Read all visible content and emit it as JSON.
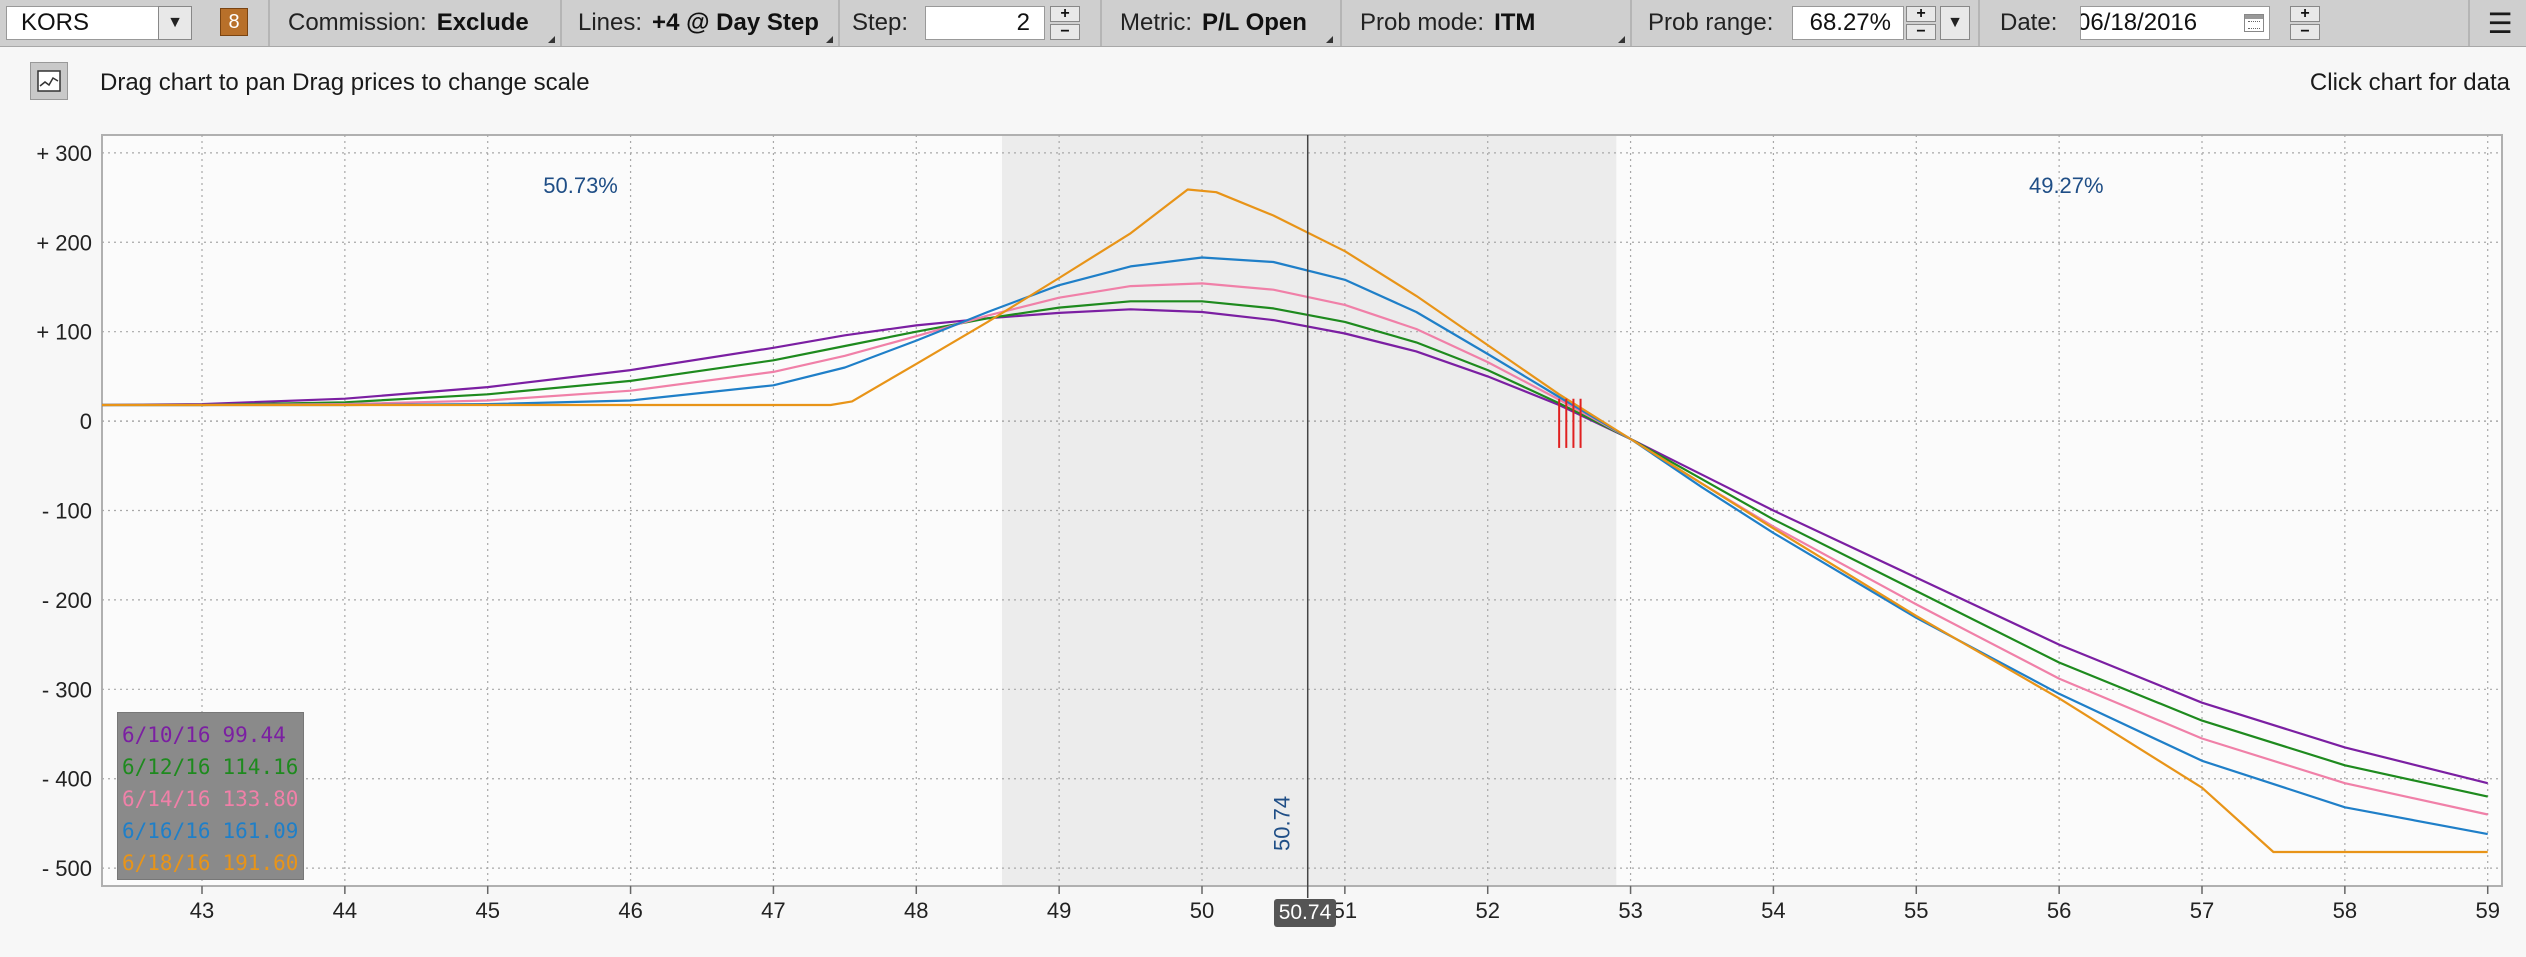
{
  "toolbar": {
    "symbol": "KORS",
    "symbol_badge": "8",
    "commission_label": "Commission:",
    "commission_value": "Exclude",
    "lines_label": "Lines:",
    "lines_value": "+4 @ Day Step",
    "step_label": "Step:",
    "step_value": "2",
    "metric_label": "Metric:",
    "metric_value": "P/L Open",
    "prob_mode_label": "Prob mode:",
    "prob_mode_value": "ITM",
    "prob_range_label": "Prob range:",
    "prob_range_value": "68.27%",
    "date_label": "Date:",
    "date_value": "06/18/2016",
    "spin_plus": "+",
    "spin_minus": "−",
    "dropdown_arrow": "▼",
    "menu_icon": "☰"
  },
  "info": {
    "left_text": "Drag chart to pan Drag prices to change scale",
    "right_text": "Click chart for data"
  },
  "chart_data": {
    "type": "line",
    "x_ticks": [
      43,
      44,
      45,
      46,
      47,
      48,
      49,
      50,
      51,
      52,
      53,
      54,
      55,
      56,
      57,
      58,
      59
    ],
    "y_ticks": [
      300,
      200,
      100,
      0,
      -100,
      -200,
      -300,
      -400,
      -500
    ],
    "y_tick_labels": [
      "+ 300",
      "+ 200",
      "+ 100",
      "0",
      "- 100",
      "- 200",
      "- 300",
      "- 400",
      "- 500"
    ],
    "xlim": [
      42.3,
      59.1
    ],
    "ylim": [
      -520,
      320
    ],
    "grid": true,
    "shaded_range": [
      48.6,
      52.9
    ],
    "probability_left": "50.73%",
    "probability_right": "49.27%",
    "current_price": 50.74,
    "current_price_label": "50.74",
    "current_price_marker": "50.74",
    "breakeven_markers": [
      52.5,
      52.55,
      52.6,
      52.65
    ],
    "colors": {
      "background": "#fbfbfb",
      "shade": "#ececec",
      "grid": "#a8a8a8",
      "probability_text": "#1f4e86",
      "breakeven": "#e02020"
    },
    "series": [
      {
        "name": "6/10/16",
        "value": "99.44",
        "color": "#7b1fa2",
        "x": [
          42.3,
          43.0,
          44.0,
          45.0,
          46.0,
          47.0,
          47.5,
          48.0,
          48.5,
          49.0,
          49.5,
          50.0,
          50.5,
          51.0,
          51.5,
          52.0,
          52.5,
          53.0,
          53.5,
          54.0,
          55.0,
          56.0,
          57.0,
          58.0,
          59.0
        ],
        "y": [
          18,
          19,
          25,
          38,
          57,
          82,
          96,
          107,
          115,
          121,
          125,
          122,
          113,
          98,
          78,
          50,
          18,
          -20,
          -60,
          -100,
          -175,
          -250,
          -315,
          -365,
          -405
        ]
      },
      {
        "name": "6/12/16",
        "value": "114.16",
        "color": "#1e8a1e",
        "x": [
          42.3,
          43.0,
          44.0,
          45.0,
          46.0,
          47.0,
          47.5,
          48.0,
          48.5,
          49.0,
          49.5,
          50.0,
          50.5,
          51.0,
          51.5,
          52.0,
          52.5,
          53.0,
          53.5,
          54.0,
          55.0,
          56.0,
          57.0,
          58.0,
          59.0
        ],
        "y": [
          18,
          18,
          21,
          30,
          45,
          68,
          84,
          100,
          115,
          127,
          134,
          134,
          126,
          111,
          88,
          57,
          20,
          -20,
          -65,
          -110,
          -190,
          -270,
          -335,
          -385,
          -420
        ]
      },
      {
        "name": "6/14/16",
        "value": "133.80",
        "color": "#f080a8",
        "x": [
          42.3,
          43.0,
          44.0,
          45.0,
          46.0,
          47.0,
          47.5,
          48.0,
          48.5,
          49.0,
          49.5,
          50.0,
          50.5,
          51.0,
          51.5,
          52.0,
          52.5,
          53.0,
          53.5,
          54.0,
          55.0,
          56.0,
          57.0,
          58.0,
          59.0
        ],
        "y": [
          18,
          18,
          19,
          23,
          34,
          55,
          73,
          95,
          118,
          138,
          151,
          154,
          147,
          130,
          103,
          66,
          24,
          -20,
          -70,
          -118,
          -205,
          -288,
          -355,
          -405,
          -440
        ]
      },
      {
        "name": "6/16/16",
        "value": "161.09",
        "color": "#1f7fc8",
        "x": [
          42.3,
          43.0,
          44.0,
          45.0,
          46.0,
          47.0,
          47.5,
          48.0,
          48.5,
          49.0,
          49.5,
          50.0,
          50.5,
          51.0,
          51.5,
          52.0,
          52.5,
          53.0,
          53.5,
          54.0,
          55.0,
          56.0,
          57.0,
          58.0,
          59.0
        ],
        "y": [
          18,
          18,
          18,
          19,
          23,
          40,
          60,
          90,
          122,
          152,
          173,
          183,
          178,
          158,
          122,
          75,
          27,
          -20,
          -74,
          -125,
          -220,
          -305,
          -380,
          -432,
          -462
        ]
      },
      {
        "name": "6/18/16",
        "value": "191.60",
        "color": "#e89418",
        "x": [
          42.3,
          43.0,
          44.0,
          45.0,
          46.0,
          47.0,
          47.4,
          47.55,
          48.0,
          48.5,
          49.0,
          49.5,
          49.9,
          50.1,
          50.5,
          51.0,
          51.5,
          52.0,
          52.5,
          53.0,
          53.5,
          54.0,
          55.0,
          56.0,
          57.0,
          57.5,
          58.0,
          59.0
        ],
        "y": [
          18,
          18,
          18,
          18,
          18,
          18,
          18,
          22,
          64,
          111,
          160,
          210,
          259,
          256,
          230,
          190,
          140,
          85,
          30,
          -20,
          -70,
          -120,
          -218,
          -310,
          -410,
          -482,
          -482,
          -482
        ]
      }
    ]
  }
}
